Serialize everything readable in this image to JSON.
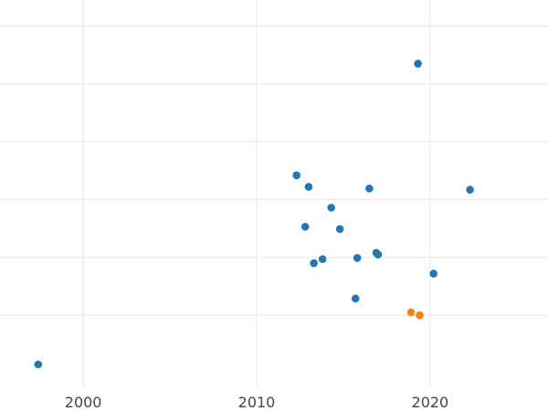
{
  "chart_data": {
    "type": "scatter",
    "title": "",
    "xlabel": "",
    "ylabel": "",
    "grid": true,
    "xlim": [
      1995.2,
      2026.8
    ],
    "x_ticks": [
      2000,
      2010,
      2020
    ],
    "x_tick_labels": [
      "2000",
      "2010",
      "2020"
    ],
    "ylim": [
      -0.3,
      6.3
    ],
    "y_gridlines": [
      0.85,
      1.85,
      2.85,
      3.85,
      4.85,
      5.85
    ],
    "series": [
      {
        "color": "#1f77b4",
        "points": [
          {
            "x": 1997.4,
            "y": 0.0
          },
          {
            "x": 2012.3,
            "y": 3.27
          },
          {
            "x": 2013.0,
            "y": 3.07
          },
          {
            "x": 2016.5,
            "y": 3.04
          },
          {
            "x": 2022.3,
            "y": 3.02
          },
          {
            "x": 2014.3,
            "y": 2.71
          },
          {
            "x": 2012.8,
            "y": 2.38
          },
          {
            "x": 2014.8,
            "y": 2.34
          },
          {
            "x": 2016.9,
            "y": 1.93
          },
          {
            "x": 2017.0,
            "y": 1.9
          },
          {
            "x": 2015.8,
            "y": 1.84
          },
          {
            "x": 2013.8,
            "y": 1.82
          },
          {
            "x": 2013.3,
            "y": 1.75
          },
          {
            "x": 2020.2,
            "y": 1.57
          },
          {
            "x": 2015.7,
            "y": 1.14
          },
          {
            "x": 2019.3,
            "y": 5.2
          }
        ]
      },
      {
        "color": "#ff7f0e",
        "points": [
          {
            "x": 2018.9,
            "y": 0.9
          },
          {
            "x": 2019.4,
            "y": 0.85
          }
        ]
      }
    ]
  }
}
